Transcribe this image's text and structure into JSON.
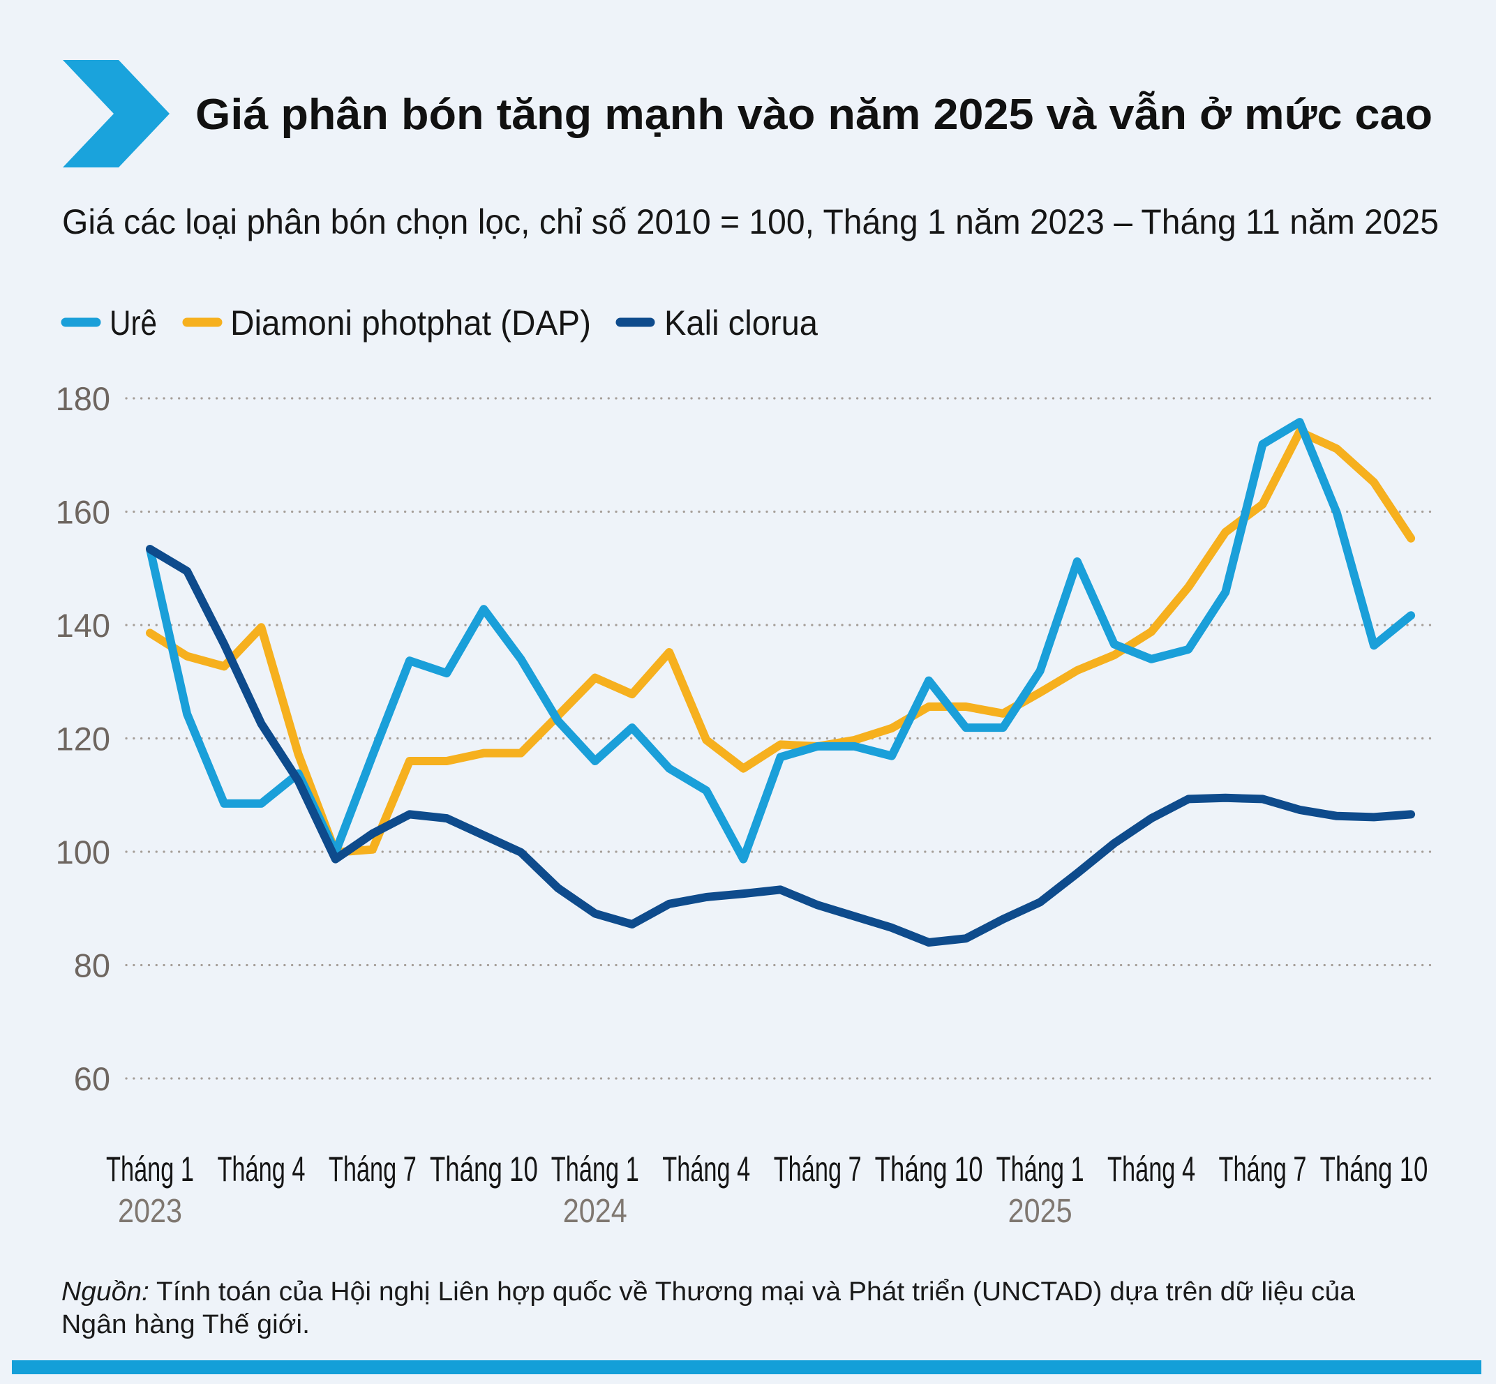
{
  "header": {
    "title": "Giá phân bón tăng mạnh vào năm 2025 và vẫn ở mức cao",
    "subtitle": "Giá các loại phân bón chọn lọc, chỉ số 2010 = 100, Tháng 1 năm 2023 – Tháng 11 năm 2025",
    "logo_icon": "chevron-right-icon",
    "accent_color": "#1aa3dc"
  },
  "source": {
    "label": "Nguồn:",
    "line1": "Tính toán của Hội nghị Liên hợp quốc về Thương mại và Phát triển (UNCTAD) dựa trên dữ liệu của",
    "line2": "Ngân hàng Thế giới."
  },
  "chart_data": {
    "type": "line",
    "title": "Giá phân bón tăng mạnh vào năm 2025 và vẫn ở mức cao",
    "subtitle": "Giá các loại phân bón chọn lọc, chỉ số 2010 = 100, Tháng 1 năm 2023 – Tháng 11 năm 2025",
    "xlabel": "",
    "ylabel": "",
    "ylim": [
      60,
      180
    ],
    "yticks": [
      180,
      160,
      140,
      120,
      100,
      80,
      60
    ],
    "grid": true,
    "legend_position": "top-left",
    "x": [
      "2023-01",
      "2023-02",
      "2023-03",
      "2023-04",
      "2023-05",
      "2023-06",
      "2023-07",
      "2023-08",
      "2023-09",
      "2023-10",
      "2023-11",
      "2023-12",
      "2024-01",
      "2024-02",
      "2024-03",
      "2024-04",
      "2024-05",
      "2024-06",
      "2024-07",
      "2024-08",
      "2024-09",
      "2024-10",
      "2024-11",
      "2024-12",
      "2025-01",
      "2025-02",
      "2025-03",
      "2025-04",
      "2025-05",
      "2025-06",
      "2025-07",
      "2025-08",
      "2025-09",
      "2025-10",
      "2025-11"
    ],
    "xticks": [
      {
        "index": 0,
        "label": "Tháng 1",
        "year": "2023"
      },
      {
        "index": 3,
        "label": "Tháng 4",
        "year": ""
      },
      {
        "index": 6,
        "label": "Tháng 7",
        "year": ""
      },
      {
        "index": 9,
        "label": "Tháng 10",
        "year": ""
      },
      {
        "index": 12,
        "label": "Tháng 1",
        "year": "2024"
      },
      {
        "index": 15,
        "label": "Tháng 4",
        "year": ""
      },
      {
        "index": 18,
        "label": "Tháng 7",
        "year": ""
      },
      {
        "index": 21,
        "label": "Tháng 10",
        "year": ""
      },
      {
        "index": 24,
        "label": "Tháng 1",
        "year": "2025"
      },
      {
        "index": 27,
        "label": "Tháng 4",
        "year": ""
      },
      {
        "index": 30,
        "label": "Tháng 7",
        "year": ""
      },
      {
        "index": 33,
        "label": "Tháng 10",
        "year": ""
      }
    ],
    "series": [
      {
        "name": "Urê",
        "color": "#1a9fd9",
        "values": [
          153.4,
          124.3,
          108.5,
          108.5,
          113.8,
          99.9,
          117.0,
          133.7,
          131.5,
          142.8,
          134.0,
          123.1,
          116.0,
          121.9,
          114.7,
          110.8,
          98.7,
          116.7,
          118.6,
          118.6,
          116.9,
          130.2,
          121.9,
          121.9,
          131.9,
          151.2,
          136.6,
          134.0,
          135.7,
          145.8,
          171.9,
          175.8,
          159.8,
          136.4,
          141.7
        ]
      },
      {
        "name": "Diamoni photphat (DAP)",
        "color": "#f6b01e",
        "values": [
          138.6,
          134.5,
          132.7,
          139.6,
          117.2,
          99.9,
          100.4,
          116.0,
          116.0,
          117.4,
          117.4,
          124.0,
          130.7,
          127.8,
          135.2,
          119.7,
          114.7,
          118.9,
          118.6,
          119.7,
          121.8,
          125.6,
          125.6,
          124.4,
          128.1,
          132.0,
          134.7,
          138.8,
          146.7,
          156.4,
          161.3,
          174.1,
          171.1,
          165.2,
          155.3
        ]
      },
      {
        "name": "Kali clorua",
        "color": "#0e4b8c",
        "values": [
          153.4,
          149.5,
          136.6,
          122.6,
          112.5,
          98.7,
          103.2,
          106.6,
          105.9,
          102.9,
          99.9,
          93.6,
          89.1,
          87.2,
          90.8,
          92.0,
          92.6,
          93.3,
          90.6,
          88.6,
          86.6,
          84.0,
          84.7,
          88.1,
          91.1,
          96.2,
          101.5,
          105.9,
          109.3,
          109.5,
          109.3,
          107.4,
          106.3,
          106.1,
          106.6
        ]
      }
    ]
  }
}
